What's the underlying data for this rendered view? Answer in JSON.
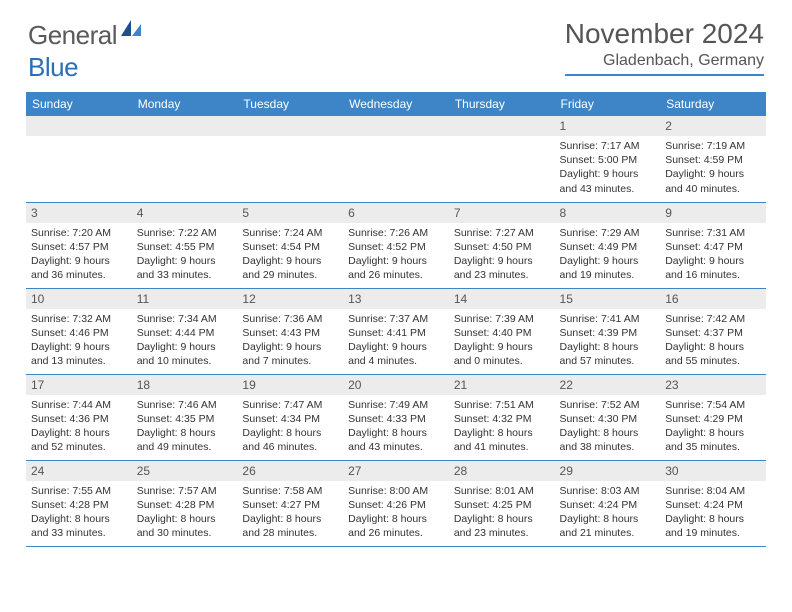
{
  "brand": {
    "part1": "General",
    "part2": "Blue"
  },
  "title": "November 2024",
  "location": "Gladenbach, Germany",
  "colors": {
    "accent": "#3d85c6",
    "header_bg": "#3d85c6",
    "daynum_bg": "#ececec",
    "text": "#333333",
    "muted": "#5a5a5a"
  },
  "weekdays": [
    "Sunday",
    "Monday",
    "Tuesday",
    "Wednesday",
    "Thursday",
    "Friday",
    "Saturday"
  ],
  "weeks": [
    [
      {
        "n": "",
        "sr": "",
        "ss": "",
        "dl": ""
      },
      {
        "n": "",
        "sr": "",
        "ss": "",
        "dl": ""
      },
      {
        "n": "",
        "sr": "",
        "ss": "",
        "dl": ""
      },
      {
        "n": "",
        "sr": "",
        "ss": "",
        "dl": ""
      },
      {
        "n": "",
        "sr": "",
        "ss": "",
        "dl": ""
      },
      {
        "n": "1",
        "sr": "Sunrise: 7:17 AM",
        "ss": "Sunset: 5:00 PM",
        "dl": "Daylight: 9 hours and 43 minutes."
      },
      {
        "n": "2",
        "sr": "Sunrise: 7:19 AM",
        "ss": "Sunset: 4:59 PM",
        "dl": "Daylight: 9 hours and 40 minutes."
      }
    ],
    [
      {
        "n": "3",
        "sr": "Sunrise: 7:20 AM",
        "ss": "Sunset: 4:57 PM",
        "dl": "Daylight: 9 hours and 36 minutes."
      },
      {
        "n": "4",
        "sr": "Sunrise: 7:22 AM",
        "ss": "Sunset: 4:55 PM",
        "dl": "Daylight: 9 hours and 33 minutes."
      },
      {
        "n": "5",
        "sr": "Sunrise: 7:24 AM",
        "ss": "Sunset: 4:54 PM",
        "dl": "Daylight: 9 hours and 29 minutes."
      },
      {
        "n": "6",
        "sr": "Sunrise: 7:26 AM",
        "ss": "Sunset: 4:52 PM",
        "dl": "Daylight: 9 hours and 26 minutes."
      },
      {
        "n": "7",
        "sr": "Sunrise: 7:27 AM",
        "ss": "Sunset: 4:50 PM",
        "dl": "Daylight: 9 hours and 23 minutes."
      },
      {
        "n": "8",
        "sr": "Sunrise: 7:29 AM",
        "ss": "Sunset: 4:49 PM",
        "dl": "Daylight: 9 hours and 19 minutes."
      },
      {
        "n": "9",
        "sr": "Sunrise: 7:31 AM",
        "ss": "Sunset: 4:47 PM",
        "dl": "Daylight: 9 hours and 16 minutes."
      }
    ],
    [
      {
        "n": "10",
        "sr": "Sunrise: 7:32 AM",
        "ss": "Sunset: 4:46 PM",
        "dl": "Daylight: 9 hours and 13 minutes."
      },
      {
        "n": "11",
        "sr": "Sunrise: 7:34 AM",
        "ss": "Sunset: 4:44 PM",
        "dl": "Daylight: 9 hours and 10 minutes."
      },
      {
        "n": "12",
        "sr": "Sunrise: 7:36 AM",
        "ss": "Sunset: 4:43 PM",
        "dl": "Daylight: 9 hours and 7 minutes."
      },
      {
        "n": "13",
        "sr": "Sunrise: 7:37 AM",
        "ss": "Sunset: 4:41 PM",
        "dl": "Daylight: 9 hours and 4 minutes."
      },
      {
        "n": "14",
        "sr": "Sunrise: 7:39 AM",
        "ss": "Sunset: 4:40 PM",
        "dl": "Daylight: 9 hours and 0 minutes."
      },
      {
        "n": "15",
        "sr": "Sunrise: 7:41 AM",
        "ss": "Sunset: 4:39 PM",
        "dl": "Daylight: 8 hours and 57 minutes."
      },
      {
        "n": "16",
        "sr": "Sunrise: 7:42 AM",
        "ss": "Sunset: 4:37 PM",
        "dl": "Daylight: 8 hours and 55 minutes."
      }
    ],
    [
      {
        "n": "17",
        "sr": "Sunrise: 7:44 AM",
        "ss": "Sunset: 4:36 PM",
        "dl": "Daylight: 8 hours and 52 minutes."
      },
      {
        "n": "18",
        "sr": "Sunrise: 7:46 AM",
        "ss": "Sunset: 4:35 PM",
        "dl": "Daylight: 8 hours and 49 minutes."
      },
      {
        "n": "19",
        "sr": "Sunrise: 7:47 AM",
        "ss": "Sunset: 4:34 PM",
        "dl": "Daylight: 8 hours and 46 minutes."
      },
      {
        "n": "20",
        "sr": "Sunrise: 7:49 AM",
        "ss": "Sunset: 4:33 PM",
        "dl": "Daylight: 8 hours and 43 minutes."
      },
      {
        "n": "21",
        "sr": "Sunrise: 7:51 AM",
        "ss": "Sunset: 4:32 PM",
        "dl": "Daylight: 8 hours and 41 minutes."
      },
      {
        "n": "22",
        "sr": "Sunrise: 7:52 AM",
        "ss": "Sunset: 4:30 PM",
        "dl": "Daylight: 8 hours and 38 minutes."
      },
      {
        "n": "23",
        "sr": "Sunrise: 7:54 AM",
        "ss": "Sunset: 4:29 PM",
        "dl": "Daylight: 8 hours and 35 minutes."
      }
    ],
    [
      {
        "n": "24",
        "sr": "Sunrise: 7:55 AM",
        "ss": "Sunset: 4:28 PM",
        "dl": "Daylight: 8 hours and 33 minutes."
      },
      {
        "n": "25",
        "sr": "Sunrise: 7:57 AM",
        "ss": "Sunset: 4:28 PM",
        "dl": "Daylight: 8 hours and 30 minutes."
      },
      {
        "n": "26",
        "sr": "Sunrise: 7:58 AM",
        "ss": "Sunset: 4:27 PM",
        "dl": "Daylight: 8 hours and 28 minutes."
      },
      {
        "n": "27",
        "sr": "Sunrise: 8:00 AM",
        "ss": "Sunset: 4:26 PM",
        "dl": "Daylight: 8 hours and 26 minutes."
      },
      {
        "n": "28",
        "sr": "Sunrise: 8:01 AM",
        "ss": "Sunset: 4:25 PM",
        "dl": "Daylight: 8 hours and 23 minutes."
      },
      {
        "n": "29",
        "sr": "Sunrise: 8:03 AM",
        "ss": "Sunset: 4:24 PM",
        "dl": "Daylight: 8 hours and 21 minutes."
      },
      {
        "n": "30",
        "sr": "Sunrise: 8:04 AM",
        "ss": "Sunset: 4:24 PM",
        "dl": "Daylight: 8 hours and 19 minutes."
      }
    ]
  ]
}
